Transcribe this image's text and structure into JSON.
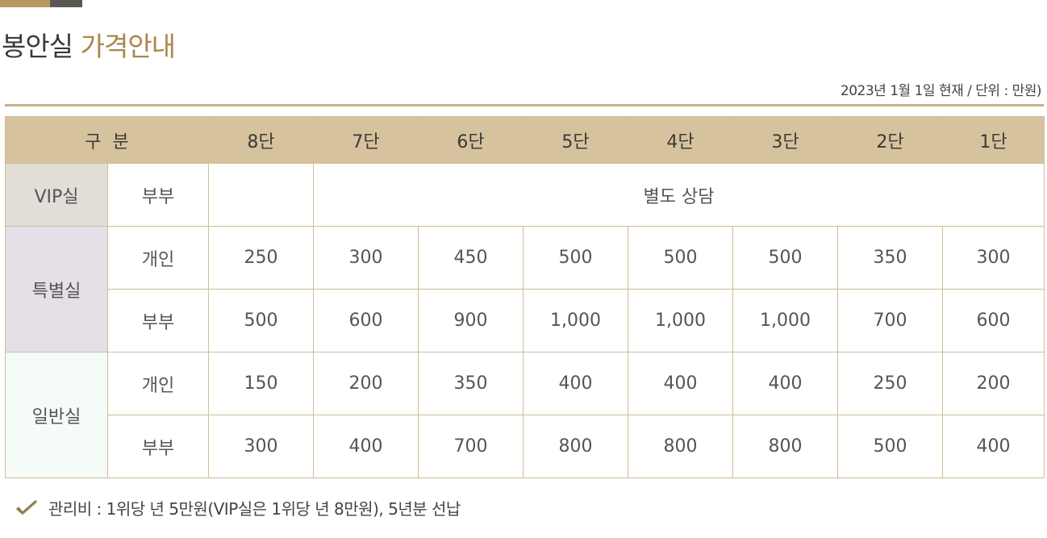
{
  "title": {
    "part1": "봉안실",
    "part2": "가격안내"
  },
  "meta": "2023년 1월 1일 현재 / 단위 : 만원)",
  "table": {
    "header": {
      "category": "구  분",
      "columns": [
        "8단",
        "7단",
        "6단",
        "5단",
        "4단",
        "3단",
        "2단",
        "1단"
      ]
    },
    "vip": {
      "name": "VIP실",
      "sub": "부부",
      "col8": "",
      "merged": "별도 상담"
    },
    "special": {
      "name": "특별실",
      "rows": [
        {
          "sub": "개인",
          "values": [
            "250",
            "300",
            "450",
            "500",
            "500",
            "500",
            "350",
            "300"
          ]
        },
        {
          "sub": "부부",
          "values": [
            "500",
            "600",
            "900",
            "1,000",
            "1,000",
            "1,000",
            "700",
            "600"
          ]
        }
      ]
    },
    "general": {
      "name": "일반실",
      "rows": [
        {
          "sub": "개인",
          "values": [
            "150",
            "200",
            "350",
            "400",
            "400",
            "400",
            "250",
            "200"
          ]
        },
        {
          "sub": "부부",
          "values": [
            "300",
            "400",
            "700",
            "800",
            "800",
            "800",
            "500",
            "400"
          ]
        }
      ]
    }
  },
  "note": {
    "icon": "check-icon",
    "text": "관리비 : 1위당 년 5만원(VIP실은 1위당 년 8만원), 5년분 선납"
  }
}
